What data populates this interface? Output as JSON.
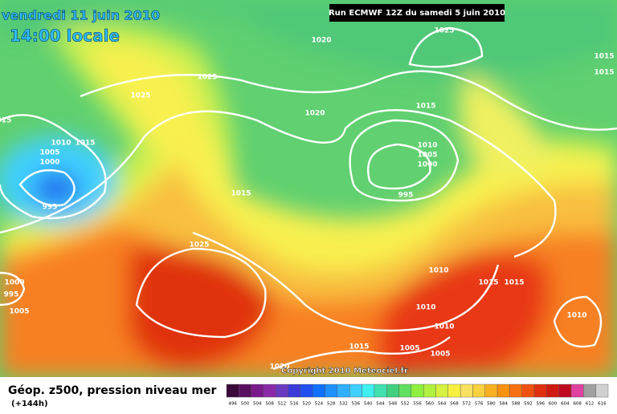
{
  "header": {
    "date": "vendredi 11 juin 2010",
    "time": "14:00 locale",
    "run": "Run ECMWF 12Z du samedi 5 juin 2010"
  },
  "map": {
    "isobar_labels": [
      "1020",
      "1025",
      "1015",
      "1015",
      "1025",
      "1025",
      "1020",
      "1015",
      "015",
      "1010",
      "1015",
      "1005",
      "1000",
      "1010",
      "1005",
      "1000",
      "1015",
      "995",
      "995",
      "1025",
      "1000",
      "995",
      "1005",
      "1010",
      "1015",
      "1015",
      "1010",
      "1010",
      "1010",
      "1015",
      "1005",
      "1005",
      "1020"
    ],
    "copyright": "Copyright 2010 Meteociel.fr"
  },
  "footer": {
    "title": "Géop. z500, pression niveau mer",
    "lead": "(+144h)"
  },
  "legend": {
    "labels": [
      496,
      500,
      504,
      508,
      512,
      516,
      520,
      524,
      528,
      532,
      536,
      540,
      544,
      548,
      552,
      556,
      560,
      564,
      568,
      572,
      576,
      580,
      584,
      588,
      592,
      596,
      600,
      604,
      608,
      612,
      616
    ],
    "colors": [
      "#3a0a3a",
      "#5a1060",
      "#7a1a8a",
      "#8a2aa8",
      "#6a3ac0",
      "#3a3ad8",
      "#2050f0",
      "#1070ff",
      "#2090ff",
      "#30b0ff",
      "#40d0ff",
      "#40f0f0",
      "#40e0b0",
      "#40d080",
      "#60e060",
      "#90f040",
      "#b0f040",
      "#d8f040",
      "#f8f040",
      "#f8e060",
      "#f8d040",
      "#f8b020",
      "#f89010",
      "#f87010",
      "#f05010",
      "#e03010",
      "#d01a10",
      "#c00a20",
      "#e040a0",
      "#a0a0a0",
      "#d0d0d0"
    ]
  }
}
